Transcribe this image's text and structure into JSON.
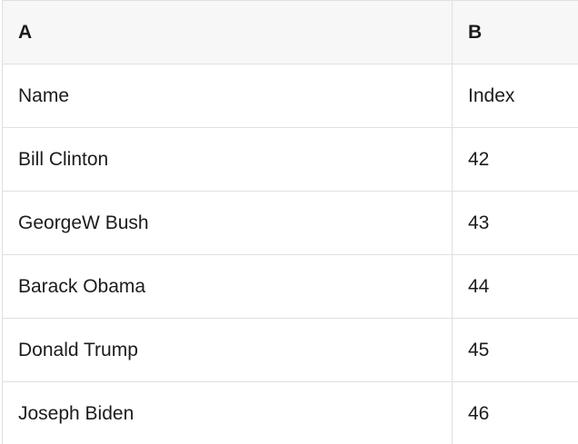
{
  "table": {
    "column_headers": {
      "a": "A",
      "b": "B"
    },
    "rows": [
      {
        "a": "Name",
        "b": "Index"
      },
      {
        "a": "Bill Clinton",
        "b": "42"
      },
      {
        "a": "GeorgeW Bush",
        "b": "43"
      },
      {
        "a": "Barack Obama",
        "b": "44"
      },
      {
        "a": "Donald Trump",
        "b": "45"
      },
      {
        "a": "Joseph Biden",
        "b": "46"
      }
    ]
  },
  "colors": {
    "header_bg": "#f7f7f7",
    "cell_bg": "#ffffff",
    "grid_border": "#e0e0e0",
    "text": "#1c1c1c"
  }
}
